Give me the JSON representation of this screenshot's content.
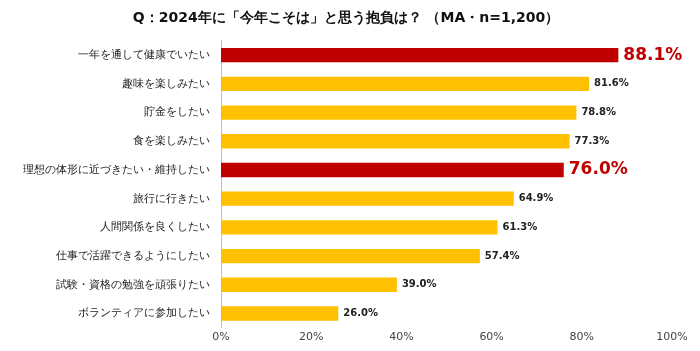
{
  "chart_data": {
    "type": "bar",
    "title": "Q：2024年に「今年こそは」と思う抱負は？ （MA・n=1,200）",
    "orientation": "horizontal",
    "categories": [
      "一年を通して健康でいたい",
      "趣味を楽しみたい",
      "貯金をしたい",
      "食を楽しみたい",
      "理想の体形に近づきたい・維持したい",
      "旅行に行きたい",
      "人間関係を良くしたい",
      "仕事で活躍できるようにしたい",
      "試験・資格の勉強を頑張りたい",
      "ボランティアに参加したい"
    ],
    "values": [
      88.1,
      81.6,
      78.8,
      77.3,
      76.0,
      64.9,
      61.3,
      57.4,
      39.0,
      26.0
    ],
    "value_labels": [
      "88.1%",
      "81.6%",
      "78.8%",
      "77.3%",
      "76.0%",
      "64.9%",
      "61.3%",
      "57.4%",
      "39.0%",
      "26.0%"
    ],
    "colors": [
      "#c00000",
      "#ffc000",
      "#ffc000",
      "#ffc000",
      "#c00000",
      "#ffc000",
      "#ffc000",
      "#ffc000",
      "#ffc000",
      "#ffc000"
    ],
    "xlim": [
      0,
      100
    ],
    "xticks": [
      {
        "value": 0,
        "label": "0%"
      },
      {
        "value": 20,
        "label": "20%"
      },
      {
        "value": 40,
        "label": "40%"
      },
      {
        "value": 60,
        "label": "60%"
      },
      {
        "value": 80,
        "label": "80%"
      },
      {
        "value": 100,
        "label": "100%"
      }
    ],
    "grid": false,
    "data_labels": true
  }
}
